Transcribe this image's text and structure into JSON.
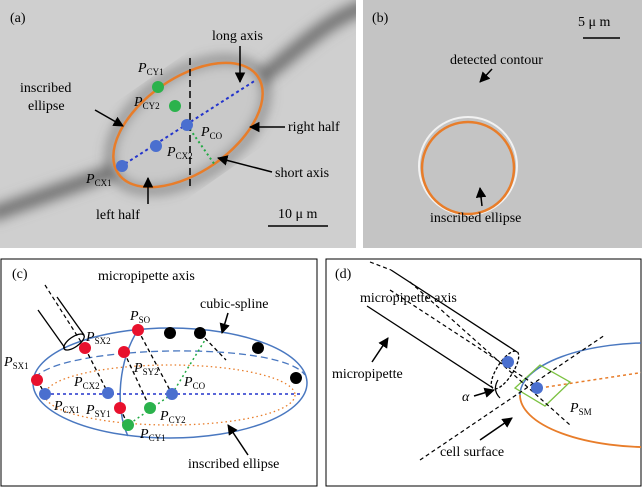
{
  "panels": {
    "a": {
      "label": "(a)",
      "annotations": {
        "long_axis": "long axis",
        "inscribed": "inscribed",
        "ellipse": "ellipse",
        "right_half": "right half",
        "short_axis": "short axis",
        "left_half": "left half",
        "scale": "10 μ m"
      },
      "points": [
        {
          "base": "P",
          "sub": "CY1"
        },
        {
          "base": "P",
          "sub": "CY2"
        },
        {
          "base": "P",
          "sub": "CO"
        },
        {
          "base": "P",
          "sub": "CX2"
        },
        {
          "base": "P",
          "sub": "CX1"
        }
      ]
    },
    "b": {
      "label": "(b)",
      "annotations": {
        "scale": "5 μ m",
        "detected": "detected contour",
        "inscribed": "inscribed ellipse"
      }
    },
    "c": {
      "label": "(c)",
      "annotations": {
        "axis": "micropipette axis",
        "spline": "cubic-spline",
        "inscribed": "inscribed ellipse"
      },
      "points": [
        {
          "base": "P",
          "sub": "SX2"
        },
        {
          "base": "P",
          "sub": "SO"
        },
        {
          "base": "P",
          "sub": "SX1"
        },
        {
          "base": "P",
          "sub": "SY2"
        },
        {
          "base": "P",
          "sub": "CX2"
        },
        {
          "base": "P",
          "sub": "CO"
        },
        {
          "base": "P",
          "sub": "CX1"
        },
        {
          "base": "P",
          "sub": "SY1"
        },
        {
          "base": "P",
          "sub": "CY2"
        },
        {
          "base": "P",
          "sub": "CY1"
        }
      ]
    },
    "d": {
      "label": "(d)",
      "annotations": {
        "axis": "micropipette axis",
        "pipette": "micropipette",
        "alpha": "α",
        "surface": "cell surface"
      },
      "points": [
        {
          "base": "P",
          "sub": "SM"
        }
      ]
    }
  }
}
